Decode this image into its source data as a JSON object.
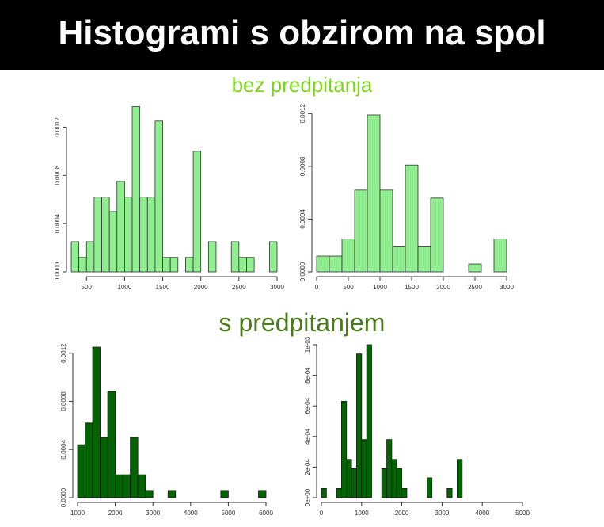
{
  "page": {
    "title": "Histogrami s obzirom na spol",
    "section_top": "bez predpitanja",
    "section_bottom": "s predpitanjem",
    "colors": {
      "banner": "#000000",
      "title": "#ffffff",
      "section_top": "#7ed321",
      "section_bottom": "#4a7a1c"
    }
  },
  "chart_data": [
    {
      "type": "bar",
      "panel": "top-left",
      "bin_start": 300,
      "bin_width": 100,
      "values": [
        0.00025,
        0.00012,
        0.00025,
        0.00062,
        0.00062,
        0.0005,
        0.00075,
        0.00062,
        0.00137,
        0.00062,
        0.00062,
        0.00125,
        0.00012,
        0.00012,
        0,
        0.00012,
        0.001,
        0,
        0.00025,
        0,
        0,
        0.00025,
        0.00012,
        0.00012,
        0,
        0,
        0.00025
      ],
      "xlim": [
        300,
        3000
      ],
      "ylim": [
        0,
        0.0014
      ],
      "xticks": [
        500,
        1000,
        1500,
        2000,
        2500,
        3000
      ],
      "yticks": [
        0,
        0.0004,
        0.0008,
        0.0012
      ],
      "xticklabels": [
        "500",
        "1000",
        "1500",
        "2000",
        "2500",
        "3000"
      ],
      "yticklabels": [
        "0.0000",
        "0.0004",
        "0.0008",
        "0.0012"
      ],
      "fill": "#90ee90"
    },
    {
      "type": "bar",
      "panel": "top-right",
      "bin_start": 0,
      "bin_width": 200,
      "values": [
        0.00012,
        0.00012,
        0.00025,
        0.00062,
        0.00119,
        0.00062,
        0.00019,
        0.00081,
        0.00019,
        0.00056,
        0,
        0,
        6e-05,
        0,
        0.00025
      ],
      "xlim": [
        0,
        3000
      ],
      "ylim": [
        0,
        0.00125
      ],
      "xticks": [
        0,
        500,
        1000,
        1500,
        2000,
        2500,
        3000
      ],
      "yticks": [
        0,
        0.0004,
        0.0008,
        0.0012
      ],
      "xticklabels": [
        "0",
        "500",
        "1000",
        "1500",
        "2000",
        "2500",
        "3000"
      ],
      "yticklabels": [
        "0.0000",
        "0.0004",
        "0.0008",
        "0.0012"
      ],
      "fill": "#90ee90"
    },
    {
      "type": "bar",
      "panel": "bottom-left",
      "bin_start": 1000,
      "bin_width": 200,
      "values": [
        0.00044,
        0.00062,
        0.00125,
        0.0005,
        0.00088,
        0.00019,
        0.00019,
        0.0005,
        0.00019,
        6e-05,
        0,
        0,
        6e-05,
        0,
        0,
        0,
        0,
        0,
        0,
        6e-05,
        0,
        0,
        0,
        0,
        6e-05
      ],
      "xlim": [
        1000,
        6000
      ],
      "ylim": [
        0,
        0.00127
      ],
      "xticks": [
        1000,
        2000,
        3000,
        4000,
        5000,
        6000
      ],
      "yticks": [
        0,
        0.0004,
        0.0008,
        0.0012
      ],
      "xticklabels": [
        "1000",
        "2000",
        "3000",
        "4000",
        "5000",
        "6000"
      ],
      "yticklabels": [
        "0.0000",
        "0.0004",
        "0.0008",
        "0.0012"
      ],
      "fill": "#006400"
    },
    {
      "type": "bar",
      "panel": "bottom-right",
      "bin_start": 0,
      "bin_width": 125,
      "values": [
        6e-05,
        0,
        0,
        6e-05,
        0.00063,
        0.00025,
        0.00019,
        0.00094,
        0.00038,
        0.001,
        0,
        0,
        0.00019,
        0.00038,
        0.00025,
        0.00019,
        6e-05,
        0,
        0,
        0,
        0,
        0.00013,
        0,
        0,
        0,
        6e-05,
        0,
        0.00025
      ],
      "xlim": [
        0,
        5000
      ],
      "ylim": [
        0,
        0.001
      ],
      "xticks": [
        0,
        1000,
        2000,
        3000,
        4000,
        5000
      ],
      "yticks": [
        0,
        0.0002,
        0.0004,
        0.0006,
        0.0008,
        0.001
      ],
      "xticklabels": [
        "0",
        "1000",
        "2000",
        "3000",
        "4000",
        "5000"
      ],
      "yticklabels": [
        "0e+00",
        "2e-04",
        "4e-04",
        "6e-04",
        "8e-04",
        "1e-03"
      ],
      "fill": "#006400"
    }
  ]
}
